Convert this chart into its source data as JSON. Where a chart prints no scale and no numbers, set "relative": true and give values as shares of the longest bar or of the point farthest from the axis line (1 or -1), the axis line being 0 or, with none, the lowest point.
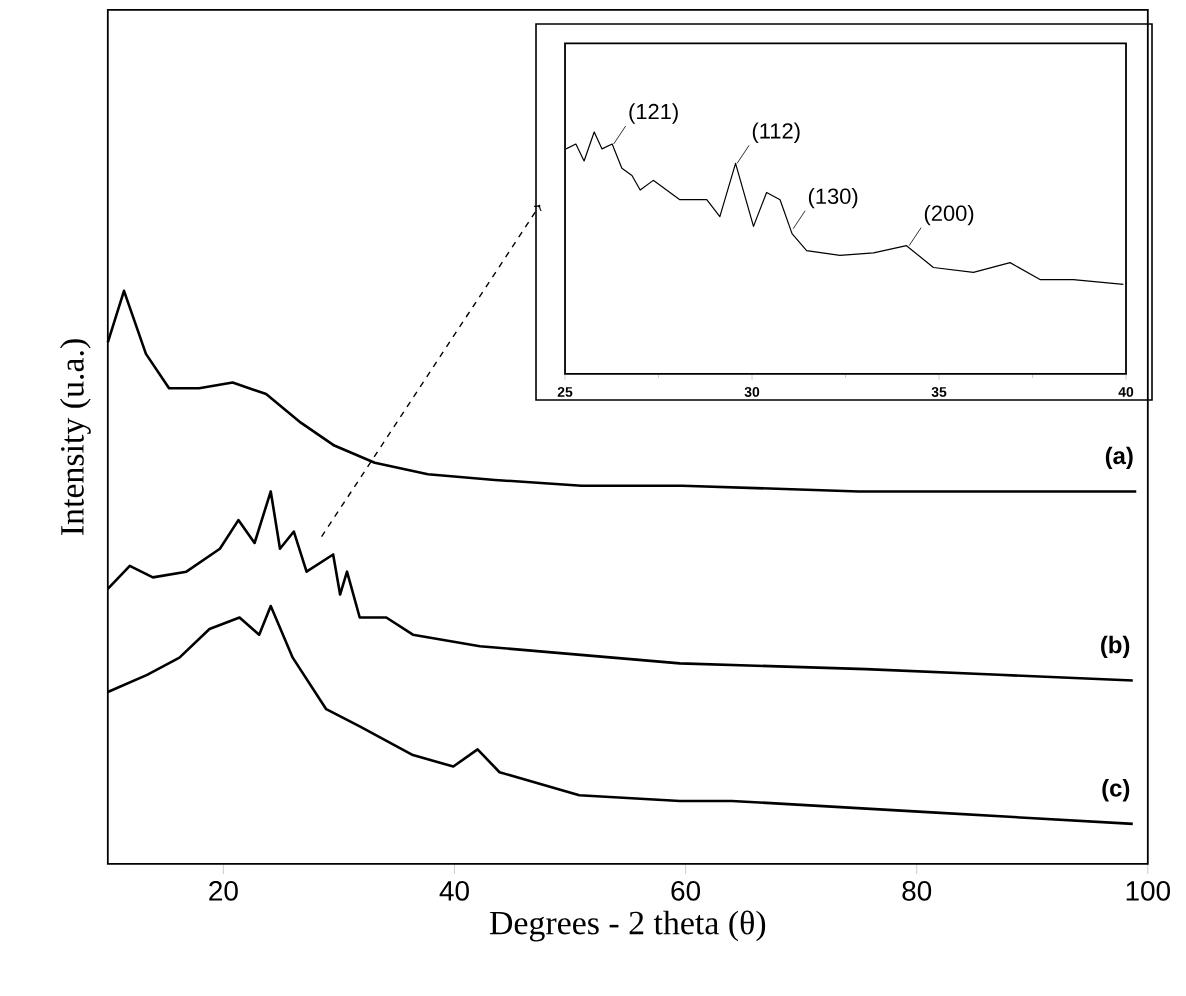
{
  "chart_data": [
    {
      "type": "line",
      "relative": true,
      "xlabel": "Degrees - 2 theta (θ)",
      "ylabel": "Intensity (u.a.)",
      "xlim": [
        10,
        100
      ],
      "xticks": [
        20,
        40,
        60,
        80,
        100
      ],
      "tick_labels": "x",
      "series": [
        {
          "name": "(a)",
          "color": "#000000",
          "x": [
            10,
            11.4,
            13.3,
            15.3,
            17.9,
            20.8,
            23.7,
            26.7,
            29.6,
            33.1,
            37.7,
            43.5,
            51,
            59.7,
            75,
            99
          ],
          "values": [
            0.91,
            1.0,
            0.89,
            0.83,
            0.83,
            0.84,
            0.82,
            0.77,
            0.73,
            0.7,
            0.68,
            0.67,
            0.66,
            0.66,
            0.65,
            0.65
          ]
        },
        {
          "name": "(b)",
          "color": "#000000",
          "x": [
            10,
            11.9,
            13.9,
            16.8,
            19.7,
            21.3,
            22.7,
            24.1,
            24.9,
            26.1,
            27.2,
            29.5,
            30.1,
            30.7,
            31.8,
            34.1,
            36.4,
            42.2,
            47.9,
            53.7,
            59.5,
            75.6,
            87.1,
            98.7
          ],
          "values": [
            0.48,
            0.52,
            0.5,
            0.51,
            0.55,
            0.6,
            0.56,
            0.65,
            0.55,
            0.58,
            0.51,
            0.54,
            0.47,
            0.51,
            0.43,
            0.43,
            0.4,
            0.38,
            0.37,
            0.36,
            0.35,
            0.34,
            0.33,
            0.32
          ]
        },
        {
          "name": "(c)",
          "color": "#000000",
          "x": [
            10,
            13.4,
            16.2,
            18.8,
            21.4,
            23.1,
            24.1,
            26,
            28.9,
            31.8,
            36.4,
            39.9,
            42,
            43.9,
            50.8,
            59.5,
            64,
            81.3,
            98.7
          ],
          "values": [
            0.3,
            0.33,
            0.36,
            0.41,
            0.43,
            0.4,
            0.45,
            0.36,
            0.27,
            0.24,
            0.19,
            0.17,
            0.2,
            0.16,
            0.12,
            0.11,
            0.11,
            0.09,
            0.07
          ]
        }
      ]
    },
    {
      "type": "line",
      "relative": true,
      "xlim": [
        25,
        40
      ],
      "xticks": [
        25,
        30,
        35,
        40
      ],
      "tick_labels": "x",
      "annotations": [
        {
          "text": "(121)",
          "x": 26.3,
          "y": 0.95
        },
        {
          "text": "(112)",
          "x": 29.6,
          "y": 0.87
        },
        {
          "text": "(130)",
          "x": 31.1,
          "y": 0.6
        },
        {
          "text": "(200)",
          "x": 34.2,
          "y": 0.53
        }
      ],
      "series": [
        {
          "color": "#000000",
          "x": [
            25.03,
            25.29,
            25.51,
            25.78,
            25.99,
            26.26,
            26.52,
            26.79,
            27.01,
            27.36,
            28.07,
            28.79,
            29.14,
            29.56,
            30.04,
            30.39,
            30.75,
            31.07,
            31.46,
            32.35,
            33.25,
            34.13,
            34.85,
            35.92,
            36.9,
            37.7,
            38.59,
            39.93
          ],
          "values": [
            0.93,
            0.95,
            0.88,
            1.0,
            0.93,
            0.95,
            0.85,
            0.82,
            0.76,
            0.8,
            0.72,
            0.72,
            0.65,
            0.87,
            0.61,
            0.75,
            0.72,
            0.58,
            0.51,
            0.49,
            0.5,
            0.53,
            0.44,
            0.42,
            0.46,
            0.39,
            0.39,
            0.37
          ]
        }
      ]
    }
  ]
}
